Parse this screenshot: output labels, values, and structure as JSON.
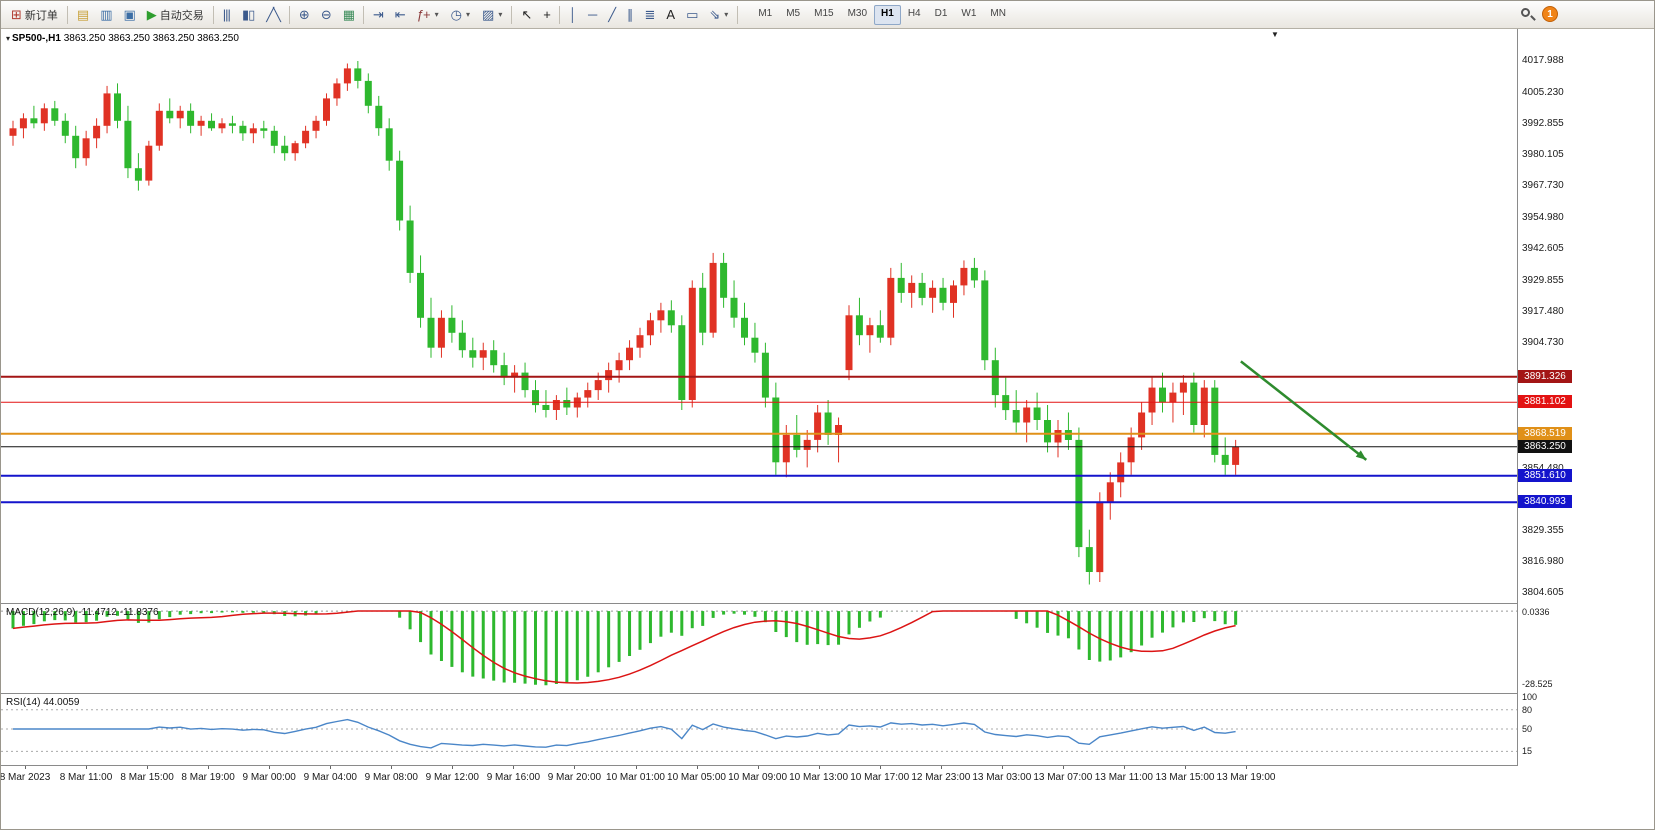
{
  "icons": {
    "dropdown": "▾",
    "collapse": "▾",
    "shift_marker": "▼"
  },
  "toolbar": {
    "items": [
      {
        "type": "button",
        "name": "new-order-button",
        "glyph": "⊞",
        "glyph_color": "#b03a2e",
        "label": "新订单"
      },
      {
        "type": "sep"
      },
      {
        "type": "icon",
        "name": "profiles-icon",
        "glyph": "▤",
        "glyph_color": "#c8a23c"
      },
      {
        "type": "icon",
        "name": "market-watch-icon",
        "glyph": "▥",
        "glyph_color": "#3c6ea5"
      },
      {
        "type": "icon",
        "name": "data-window-icon",
        "glyph": "▣",
        "glyph_color": "#3c6ea5"
      },
      {
        "type": "button",
        "name": "auto-trading-button",
        "glyph": "▶",
        "glyph_color": "#2e9e2e",
        "label": "自动交易"
      },
      {
        "type": "sep"
      },
      {
        "type": "icon",
        "name": "bar-chart-icon",
        "glyph": "|||",
        "glyph_color": "#3c5a8c"
      },
      {
        "type": "icon",
        "name": "candlestick-chart-icon",
        "glyph": "▮▯",
        "glyph_color": "#3c5a8c"
      },
      {
        "type": "icon",
        "name": "line-chart-icon",
        "glyph": "╱╲",
        "glyph_color": "#3c5a8c"
      },
      {
        "type": "sep"
      },
      {
        "type": "icon",
        "name": "zoom-in-icon",
        "glyph": "⊕",
        "glyph_color": "#3c5a8c"
      },
      {
        "type": "icon",
        "name": "zoom-out-icon",
        "glyph": "⊖",
        "glyph_color": "#3c5a8c"
      },
      {
        "type": "icon",
        "name": "tile-windows-icon",
        "glyph": "▦",
        "glyph_color": "#3c8c5a"
      },
      {
        "type": "sep"
      },
      {
        "type": "icon",
        "name": "auto-scroll-icon",
        "glyph": "⇥",
        "glyph_color": "#3c5a8c"
      },
      {
        "type": "icon",
        "name": "chart-shift-icon",
        "glyph": "⇤",
        "glyph_color": "#3c5a8c"
      },
      {
        "type": "dropdown",
        "name": "indicators-button",
        "glyph": "ƒ+",
        "glyph_color": "#8c3c3c"
      },
      {
        "type": "dropdown",
        "name": "periods-button",
        "glyph": "◷",
        "glyph_color": "#3c5a8c"
      },
      {
        "type": "dropdown",
        "name": "templates-button",
        "glyph": "▨",
        "glyph_color": "#3c5a8c"
      },
      {
        "type": "sep"
      },
      {
        "type": "icon",
        "name": "cursor-tool-icon",
        "glyph": "↖",
        "glyph_color": "#222222"
      },
      {
        "type": "icon",
        "name": "crosshair-tool-icon",
        "glyph": "+",
        "glyph_color": "#222222"
      },
      {
        "type": "sep"
      },
      {
        "type": "icon",
        "name": "vertical-line-icon",
        "glyph": "│",
        "glyph_color": "#3c5a8c"
      },
      {
        "type": "icon",
        "name": "horizontal-line-icon",
        "glyph": "─",
        "glyph_color": "#3c5a8c"
      },
      {
        "type": "icon",
        "name": "trendline-icon",
        "glyph": "╱",
        "glyph_color": "#3c5a8c"
      },
      {
        "type": "icon",
        "name": "equidistant-channel-icon",
        "glyph": "∥",
        "glyph_color": "#3c5a8c"
      },
      {
        "type": "icon",
        "name": "fibonacci-icon",
        "glyph": "≣",
        "glyph_color": "#3c5a8c"
      },
      {
        "type": "icon",
        "name": "text-tool-icon",
        "glyph": "A",
        "glyph_color": "#222222"
      },
      {
        "type": "icon",
        "name": "shapes-icon",
        "glyph": "▭",
        "glyph_color": "#3c5a8c"
      },
      {
        "type": "dropdown",
        "name": "arrows-tool-button",
        "glyph": "⇘",
        "glyph_color": "#3c5a8c"
      },
      {
        "type": "sep"
      }
    ],
    "timeframes": [
      "M1",
      "M5",
      "M15",
      "M30",
      "H1",
      "H4",
      "D1",
      "W1",
      "MN"
    ],
    "active_timeframe": "H1",
    "notification_count": "1"
  },
  "chart": {
    "symbol_label": "SP500-,H1",
    "ohlc_label": "3863.250 3863.250 3863.250 3863.250",
    "price_axis_range": {
      "max": 4017.988,
      "min": 3804.605
    },
    "price_axis": [
      "4017.988",
      "4005.230",
      "3992.855",
      "3980.105",
      "3967.730",
      "3954.980",
      "3942.605",
      "3929.855",
      "3917.480",
      "3904.730",
      "3854.480",
      "3829.355",
      "3816.980",
      "3804.605"
    ],
    "hlines": [
      {
        "value": 3891.326,
        "label": "3891.326",
        "color": "#a31515",
        "width": 2
      },
      {
        "value": 3881.102,
        "label": "3881.102",
        "color": "#e31212",
        "width": 1
      },
      {
        "value": 3868.519,
        "label": "3868.519",
        "color": "#e09018",
        "width": 2
      },
      {
        "value": 3863.25,
        "label": "3863.250",
        "color": "#111111",
        "width": 1
      },
      {
        "value": 3851.61,
        "label": "3851.610",
        "color": "#1414cc",
        "width": 2
      },
      {
        "value": 3840.993,
        "label": "3840.993",
        "color": "#1414cc",
        "width": 2
      }
    ],
    "arrow": {
      "from": {
        "bar": 117.5,
        "price": 3897.5
      },
      "to": {
        "bar": 129.5,
        "price": 3858.0
      },
      "color": "#2e8b2e"
    }
  },
  "chart_data": {
    "type": "candlestick",
    "title": "SP500-,H1",
    "timeframe": "H1",
    "colors": {
      "up": "#e03224",
      "down": "#2eb82e",
      "macd_hist": "#2eb82e",
      "macd_signal": "#dc1414",
      "rsi_line": "#4a86c8"
    },
    "candles": [
      [
        3988,
        3994,
        3984,
        3991
      ],
      [
        3991,
        3997,
        3987,
        3995
      ],
      [
        3995,
        4000,
        3991,
        3993
      ],
      [
        3993,
        4001,
        3990,
        3999
      ],
      [
        3999,
        4002,
        3992,
        3994
      ],
      [
        3994,
        3997,
        3985,
        3988
      ],
      [
        3988,
        3992,
        3975,
        3979
      ],
      [
        3979,
        3990,
        3976,
        3987
      ],
      [
        3987,
        3995,
        3983,
        3992
      ],
      [
        3992,
        4008,
        3989,
        4005
      ],
      [
        4005,
        4009,
        3991,
        3994
      ],
      [
        3994,
        4000,
        3971,
        3975
      ],
      [
        3975,
        3981,
        3966,
        3970
      ],
      [
        3970,
        3986,
        3968,
        3984
      ],
      [
        3984,
        4001,
        3982,
        3998
      ],
      [
        3998,
        4003,
        3993,
        3995
      ],
      [
        3995,
        4000,
        3991,
        3998
      ],
      [
        3998,
        4001,
        3989,
        3992
      ],
      [
        3992,
        3996,
        3988,
        3994
      ],
      [
        3994,
        3997,
        3990,
        3991
      ],
      [
        3991,
        3995,
        3989,
        3993
      ],
      [
        3993,
        3996,
        3989,
        3992
      ],
      [
        3992,
        3994,
        3986,
        3989
      ],
      [
        3989,
        3993,
        3985,
        3991
      ],
      [
        3991,
        3994,
        3987,
        3990
      ],
      [
        3990,
        3992,
        3981,
        3984
      ],
      [
        3984,
        3988,
        3978,
        3981
      ],
      [
        3981,
        3986,
        3978,
        3985
      ],
      [
        3985,
        3992,
        3983,
        3990
      ],
      [
        3990,
        3996,
        3987,
        3994
      ],
      [
        3994,
        4005,
        3992,
        4003
      ],
      [
        4003,
        4011,
        4000,
        4009
      ],
      [
        4009,
        4017,
        4006,
        4015
      ],
      [
        4015,
        4018,
        4007,
        4010
      ],
      [
        4010,
        4013,
        3997,
        4000
      ],
      [
        4000,
        4004,
        3988,
        3991
      ],
      [
        3991,
        3995,
        3974,
        3978
      ],
      [
        3978,
        3982,
        3950,
        3954
      ],
      [
        3954,
        3960,
        3929,
        3933
      ],
      [
        3933,
        3940,
        3911,
        3915
      ],
      [
        3915,
        3923,
        3899,
        3903
      ],
      [
        3903,
        3918,
        3899,
        3915
      ],
      [
        3915,
        3920,
        3905,
        3909
      ],
      [
        3909,
        3914,
        3899,
        3902
      ],
      [
        3902,
        3907,
        3895,
        3899
      ],
      [
        3899,
        3905,
        3894,
        3902
      ],
      [
        3902,
        3906,
        3893,
        3896
      ],
      [
        3896,
        3901,
        3888,
        3891
      ],
      [
        3891,
        3896,
        3885,
        3893
      ],
      [
        3893,
        3897,
        3883,
        3886
      ],
      [
        3886,
        3890,
        3877,
        3880
      ],
      [
        3880,
        3886,
        3875,
        3878
      ],
      [
        3878,
        3884,
        3874,
        3882
      ],
      [
        3882,
        3887,
        3876,
        3879
      ],
      [
        3879,
        3885,
        3875,
        3883
      ],
      [
        3883,
        3889,
        3879,
        3886
      ],
      [
        3886,
        3893,
        3882,
        3890
      ],
      [
        3890,
        3897,
        3885,
        3894
      ],
      [
        3894,
        3901,
        3889,
        3898
      ],
      [
        3898,
        3906,
        3894,
        3903
      ],
      [
        3903,
        3911,
        3899,
        3908
      ],
      [
        3908,
        3917,
        3904,
        3914
      ],
      [
        3914,
        3921,
        3909,
        3918
      ],
      [
        3918,
        3922,
        3909,
        3912
      ],
      [
        3912,
        3916,
        3878,
        3882
      ],
      [
        3882,
        3930,
        3879,
        3927
      ],
      [
        3927,
        3933,
        3904,
        3909
      ],
      [
        3909,
        3941,
        3907,
        3937
      ],
      [
        3937,
        3941,
        3919,
        3923
      ],
      [
        3923,
        3930,
        3911,
        3915
      ],
      [
        3915,
        3921,
        3904,
        3907
      ],
      [
        3907,
        3913,
        3897,
        3901
      ],
      [
        3901,
        3905,
        3879,
        3883
      ],
      [
        3883,
        3889,
        3852,
        3857
      ],
      [
        3857,
        3872,
        3851,
        3868
      ],
      [
        3868,
        3876,
        3859,
        3862
      ],
      [
        3862,
        3870,
        3855,
        3866
      ],
      [
        3866,
        3880,
        3861,
        3877
      ],
      [
        3877,
        3882,
        3864,
        3868
      ],
      [
        3868,
        3875,
        3857,
        3872
      ],
      [
        3894,
        3920,
        3890,
        3916
      ],
      [
        3916,
        3923,
        3904,
        3908
      ],
      [
        3908,
        3915,
        3901,
        3912
      ],
      [
        3912,
        3918,
        3905,
        3907
      ],
      [
        3907,
        3935,
        3904,
        3931
      ],
      [
        3931,
        3937,
        3921,
        3925
      ],
      [
        3925,
        3932,
        3919,
        3929
      ],
      [
        3929,
        3933,
        3920,
        3923
      ],
      [
        3923,
        3930,
        3917,
        3927
      ],
      [
        3927,
        3931,
        3918,
        3921
      ],
      [
        3921,
        3930,
        3915,
        3928
      ],
      [
        3928,
        3938,
        3924,
        3935
      ],
      [
        3935,
        3939,
        3927,
        3930
      ],
      [
        3930,
        3934,
        3894,
        3898
      ],
      [
        3898,
        3903,
        3879,
        3884
      ],
      [
        3884,
        3891,
        3874,
        3878
      ],
      [
        3878,
        3886,
        3869,
        3873
      ],
      [
        3873,
        3882,
        3865,
        3879
      ],
      [
        3879,
        3885,
        3870,
        3874
      ],
      [
        3874,
        3880,
        3861,
        3865
      ],
      [
        3865,
        3874,
        3859,
        3870
      ],
      [
        3870,
        3877,
        3862,
        3866
      ],
      [
        3866,
        3871,
        3819,
        3823
      ],
      [
        3823,
        3830,
        3808,
        3813
      ],
      [
        3813,
        3845,
        3809,
        3841
      ],
      [
        3841,
        3853,
        3834,
        3849
      ],
      [
        3849,
        3861,
        3843,
        3857
      ],
      [
        3857,
        3871,
        3852,
        3867
      ],
      [
        3867,
        3881,
        3862,
        3877
      ],
      [
        3877,
        3891,
        3872,
        3887
      ],
      [
        3887,
        3893,
        3877,
        3881
      ],
      [
        3881,
        3889,
        3873,
        3885
      ],
      [
        3885,
        3892,
        3876,
        3889
      ],
      [
        3889,
        3893,
        3869,
        3872
      ],
      [
        3872,
        3890,
        3867,
        3887
      ],
      [
        3887,
        3890,
        3857,
        3860
      ],
      [
        3860,
        3867,
        3852,
        3856
      ],
      [
        3856,
        3866,
        3852,
        3863.25
      ]
    ]
  },
  "macd": {
    "label": "MACD(12,26,9)",
    "value": "-11.4712",
    "signal_value": "-11.8376",
    "axis_max_label": "0.0336",
    "axis_min_label": "-28.525",
    "range": {
      "max": 0.0336,
      "min": -28.525
    }
  },
  "rsi": {
    "label": "RSI(14)",
    "value": "44.0059",
    "levels": [
      "100",
      "80",
      "50",
      "15"
    ],
    "range": {
      "max": 100,
      "min": 0
    }
  },
  "time_axis": [
    "8 Mar 2023",
    "8 Mar 11:00",
    "8 Mar 15:00",
    "8 Mar 19:00",
    "9 Mar 00:00",
    "9 Mar 04:00",
    "9 Mar 08:00",
    "9 Mar 12:00",
    "9 Mar 16:00",
    "9 Mar 20:00",
    "10 Mar 01:00",
    "10 Mar 05:00",
    "10 Mar 09:00",
    "10 Mar 13:00",
    "10 Mar 17:00",
    "12 Mar 23:00",
    "13 Mar 03:00",
    "13 Mar 07:00",
    "13 Mar 11:00",
    "13 Mar 15:00",
    "13 Mar 19:00"
  ]
}
